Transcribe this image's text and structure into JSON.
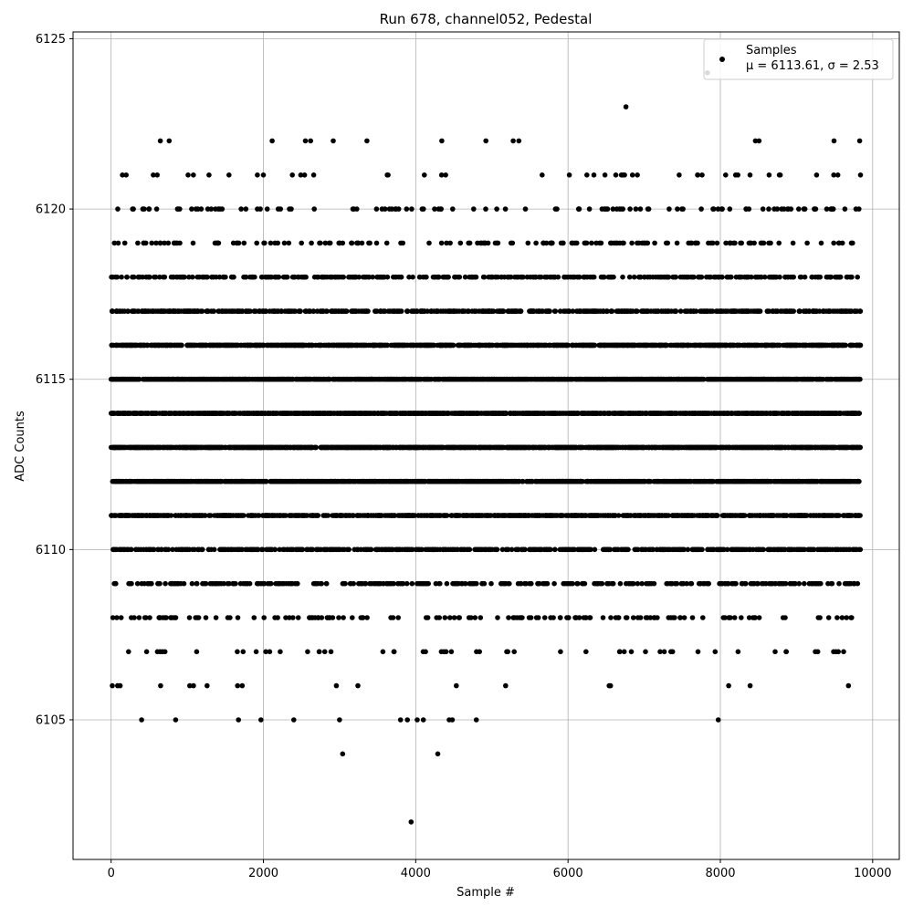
{
  "chart_data": {
    "type": "scatter",
    "title": "Run 678, channel052, Pedestal",
    "xlabel": "Sample #",
    "ylabel": "ADC Counts",
    "xlim": [
      -500,
      10350
    ],
    "ylim": [
      6100.9,
      6125.2
    ],
    "xticks": [
      0,
      2000,
      4000,
      6000,
      8000,
      10000
    ],
    "yticks": [
      6105,
      6110,
      6115,
      6120,
      6125
    ],
    "grid": true,
    "marker_color": "#000000",
    "legend": {
      "position": "top-right",
      "entry": "Samples",
      "stats": "μ = 6113.61, σ = 2.53"
    },
    "series": [
      {
        "name": "Samples",
        "sample_count": 10000,
        "x_range": [
          0,
          9840
        ],
        "levels": [
          {
            "y": 6113,
            "ranges": [
              [
                0,
                9840
              ]
            ]
          },
          {
            "y": 6112,
            "ranges": [
              [
                0,
                9840
              ]
            ]
          },
          {
            "y": 6114,
            "ranges": [
              [
                0,
                9840
              ]
            ]
          },
          {
            "y": 6115,
            "ranges": [
              [
                0,
                9840
              ]
            ]
          },
          {
            "y": 6111,
            "ranges": [
              [
                0,
                9840
              ]
            ]
          },
          {
            "y": 6116,
            "ranges": [
              [
                0,
                9840
              ]
            ]
          },
          {
            "y": 6110,
            "ranges": [
              [
                0,
                9840
              ]
            ]
          },
          {
            "y": 6117,
            "ranges": [
              [
                0,
                9840
              ]
            ]
          },
          {
            "y": 6109,
            "ranges": [
              [
                0,
                9840
              ]
            ]
          },
          {
            "y": 6118,
            "ranges": [
              [
                0,
                9840
              ]
            ]
          },
          {
            "y": 6119,
            "ranges": [
              [
                0,
                9840
              ]
            ]
          },
          {
            "y": 6108,
            "ranges": [
              [
                0,
                9840
              ]
            ]
          },
          {
            "y": 6107,
            "ranges": [
              [
                0,
                9840
              ]
            ]
          },
          {
            "y": 6120,
            "ranges": [
              [
                0,
                9840
              ]
            ]
          },
          {
            "y": 6106,
            "ranges": [
              [
                0,
                9840
              ]
            ]
          },
          {
            "y": 6121,
            "ranges": [
              [
                0,
                9840
              ]
            ]
          },
          {
            "y": 6105,
            "ranges": [
              [
                0,
                9840
              ]
            ]
          },
          {
            "y": 6122,
            "ranges": [
              [
                0,
                9840
              ]
            ]
          }
        ],
        "points": [
          [
            0,
            6113
          ],
          [
            40,
            6114
          ],
          [
            90,
            6112
          ],
          [
            140,
            6115
          ],
          [
            200,
            6111
          ],
          [
            260,
            6110
          ],
          [
            310,
            6114
          ],
          [
            380,
            6113
          ],
          [
            420,
            6116
          ],
          [
            470,
            6112
          ],
          [
            530,
            6109
          ],
          [
            580,
            6115
          ],
          [
            640,
            6113
          ],
          [
            700,
            6111
          ],
          [
            760,
            6114
          ],
          [
            820,
            6117
          ],
          [
            880,
            6112
          ],
          [
            940,
            6110
          ],
          [
            1000,
            6113
          ],
          [
            1070,
            6115
          ],
          [
            1130,
            6108
          ],
          [
            1190,
            6114
          ],
          [
            1250,
            6112
          ],
          [
            1310,
            6116
          ],
          [
            1370,
            6113
          ],
          [
            1430,
            6111
          ],
          [
            1490,
            6115
          ],
          [
            1550,
            6109
          ],
          [
            1610,
            6113
          ],
          [
            1670,
            6117
          ],
          [
            1730,
            6112
          ],
          [
            1790,
            6114
          ],
          [
            1850,
            6110
          ],
          [
            1910,
            6116
          ],
          [
            1970,
            6113
          ],
          [
            2030,
            6111
          ],
          [
            2090,
            6115
          ],
          [
            2150,
            6118
          ],
          [
            2210,
            6112
          ],
          [
            2270,
            6114
          ],
          [
            2330,
            6109
          ],
          [
            2390,
            6113
          ],
          [
            2450,
            6116
          ],
          [
            2510,
            6111
          ],
          [
            2570,
            6115
          ],
          [
            2630,
            6112
          ],
          [
            2690,
            6114
          ],
          [
            2750,
            6117
          ],
          [
            2810,
            6110
          ],
          [
            2870,
            6113
          ],
          [
            2930,
            6112
          ],
          [
            2990,
            6115
          ],
          [
            3050,
            6108
          ],
          [
            3110,
            6113
          ],
          [
            3170,
            6111
          ],
          [
            3230,
            6114
          ],
          [
            3290,
            6116
          ],
          [
            3350,
            6110
          ],
          [
            3410,
            6113
          ],
          [
            3470,
            6109
          ],
          [
            3530,
            6112
          ],
          [
            3590,
            6115
          ],
          [
            3650,
            6111
          ],
          [
            3710,
            6114
          ],
          [
            3770,
            6108
          ],
          [
            3830,
            6113
          ],
          [
            3890,
            6110
          ],
          [
            3950,
            6112
          ],
          [
            4010,
            6116
          ],
          [
            4070,
            6109
          ],
          [
            4130,
            6113
          ],
          [
            4190,
            6111
          ],
          [
            4250,
            6114
          ],
          [
            4310,
            6108
          ],
          [
            4370,
            6112
          ],
          [
            4430,
            6115
          ],
          [
            4490,
            6110
          ],
          [
            4550,
            6113
          ],
          [
            4610,
            6117
          ],
          [
            4670,
            6111
          ],
          [
            4730,
            6114
          ],
          [
            4790,
            6112
          ],
          [
            4850,
            6116
          ],
          [
            4910,
            6110
          ],
          [
            4970,
            6113
          ],
          [
            5030,
            6115
          ],
          [
            5090,
            6111
          ],
          [
            5150,
            6114
          ],
          [
            5210,
            6117
          ],
          [
            5270,
            6112
          ],
          [
            5330,
            6113
          ],
          [
            5390,
            6110
          ],
          [
            5450,
            6115
          ],
          [
            5510,
            6112
          ],
          [
            5570,
            6118
          ],
          [
            5630,
            6113
          ],
          [
            5690,
            6114
          ],
          [
            5750,
            6111
          ],
          [
            5810,
            6116
          ],
          [
            5870,
            6113
          ],
          [
            5930,
            6112
          ],
          [
            5990,
            6115
          ],
          [
            6050,
            6110
          ],
          [
            6110,
            6114
          ],
          [
            6170,
            6117
          ],
          [
            6230,
            6113
          ],
          [
            6290,
            6111
          ],
          [
            6350,
            6116
          ],
          [
            6410,
            6112
          ],
          [
            6470,
            6114
          ],
          [
            6530,
            6118
          ],
          [
            6590,
            6113
          ],
          [
            6650,
            6110
          ],
          [
            6710,
            6115
          ],
          [
            6770,
            6112
          ],
          [
            6830,
            6117
          ],
          [
            6890,
            6114
          ],
          [
            6950,
            6111
          ],
          [
            7010,
            6116
          ],
          [
            7070,
            6113
          ],
          [
            7130,
            6109
          ],
          [
            7190,
            6115
          ],
          [
            7250,
            6112
          ],
          [
            7310,
            6118
          ],
          [
            7370,
            6114
          ],
          [
            7430,
            6111
          ],
          [
            7490,
            6116
          ],
          [
            7550,
            6113
          ],
          [
            7610,
            6119
          ],
          [
            7670,
            6115
          ],
          [
            7730,
            6112
          ],
          [
            7790,
            6117
          ],
          [
            7850,
            6114
          ],
          [
            7910,
            6110
          ],
          [
            7970,
            6116
          ],
          [
            8030,
            6113
          ],
          [
            8090,
            6118
          ],
          [
            8150,
            6115
          ],
          [
            8210,
            6111
          ],
          [
            8270,
            6117
          ],
          [
            8330,
            6114
          ],
          [
            8390,
            6112
          ],
          [
            8450,
            6116
          ],
          [
            8510,
            6113
          ],
          [
            8570,
            6119
          ],
          [
            8630,
            6115
          ],
          [
            8690,
            6111
          ],
          [
            8750,
            6117
          ],
          [
            8810,
            6114
          ],
          [
            8870,
            6112
          ],
          [
            8930,
            6116
          ],
          [
            8990,
            6113
          ],
          [
            9050,
            6118
          ],
          [
            9110,
            6115
          ],
          [
            9170,
            6110
          ],
          [
            9230,
            6117
          ],
          [
            9290,
            6114
          ],
          [
            9350,
            6112
          ],
          [
            9410,
            6116
          ],
          [
            9470,
            6113
          ],
          [
            9530,
            6118
          ],
          [
            9590,
            6115
          ],
          [
            9650,
            6111
          ],
          [
            9710,
            6117
          ],
          [
            9770,
            6114
          ],
          [
            9830,
            6116
          ],
          [
            15,
            6106
          ],
          [
            85,
            6106
          ],
          [
            180,
            6119
          ],
          [
            400,
            6105
          ],
          [
            650,
            6106
          ],
          [
            1260,
            6106
          ],
          [
            3000,
            6105
          ],
          [
            3040,
            6104
          ],
          [
            3800,
            6105
          ],
          [
            3890,
            6105
          ],
          [
            3940,
            6102
          ],
          [
            4020,
            6105
          ],
          [
            4100,
            6105
          ],
          [
            4290,
            6104
          ],
          [
            4440,
            6105
          ],
          [
            4480,
            6105
          ],
          [
            2220,
            6107
          ],
          [
            7350,
            6107
          ],
          [
            7400,
            6108
          ],
          [
            8380,
            6108
          ],
          [
            1920,
            6121
          ],
          [
            2000,
            6121
          ],
          [
            2380,
            6121
          ],
          [
            2490,
            6121
          ],
          [
            2540,
            6121
          ],
          [
            2660,
            6121
          ],
          [
            6340,
            6121
          ],
          [
            6700,
            6121
          ],
          [
            6720,
            6121
          ],
          [
            6910,
            6121
          ],
          [
            7700,
            6121
          ],
          [
            7760,
            6121
          ],
          [
            8070,
            6121
          ],
          [
            8200,
            6121
          ],
          [
            8230,
            6121
          ],
          [
            8390,
            6121
          ],
          [
            8640,
            6121
          ],
          [
            9840,
            6121
          ],
          [
            8460,
            6122
          ],
          [
            9830,
            6122
          ],
          [
            6760,
            6123
          ],
          [
            7830,
            6124
          ],
          [
            900,
            6120
          ],
          [
            1140,
            6120
          ],
          [
            1430,
            6120
          ],
          [
            1770,
            6120
          ],
          [
            1920,
            6120
          ],
          [
            2050,
            6120
          ],
          [
            6140,
            6120
          ],
          [
            6520,
            6120
          ],
          [
            6720,
            6120
          ],
          [
            6950,
            6120
          ],
          [
            7060,
            6120
          ],
          [
            7510,
            6120
          ],
          [
            7750,
            6120
          ],
          [
            7970,
            6120
          ],
          [
            8340,
            6120
          ],
          [
            8560,
            6120
          ],
          [
            9110,
            6120
          ],
          [
            9240,
            6120
          ],
          [
            9460,
            6120
          ],
          [
            9780,
            6120
          ],
          [
            9820,
            6120
          ],
          [
            3240,
            6119
          ],
          [
            3830,
            6119
          ],
          [
            4710,
            6119
          ],
          [
            5080,
            6119
          ],
          [
            5580,
            6119
          ],
          [
            5780,
            6119
          ],
          [
            6050,
            6119
          ],
          [
            7290,
            6119
          ],
          [
            8400,
            6119
          ],
          [
            8660,
            6119
          ],
          [
            9140,
            6119
          ],
          [
            9560,
            6119
          ],
          [
            9720,
            6119
          ],
          [
            820,
            6118
          ],
          [
            4230,
            6118
          ],
          [
            4750,
            6118
          ],
          [
            5300,
            6118
          ],
          [
            5620,
            6118
          ],
          [
            6000,
            6118
          ],
          [
            7320,
            6118
          ],
          [
            8850,
            6118
          ],
          [
            9310,
            6118
          ],
          [
            9720,
            6118
          ]
        ]
      }
    ]
  }
}
